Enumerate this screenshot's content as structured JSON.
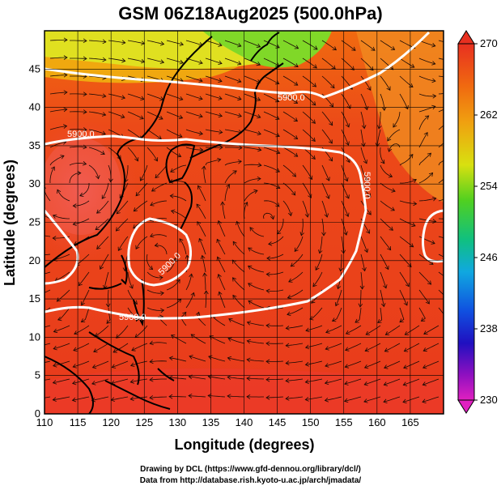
{
  "title": "GSM 06Z18Aug2025 (500.0hPa)",
  "chart_data": {
    "type": "heatmap",
    "x_axis_label": "Longitude (degrees)",
    "y_axis_label": "Latitude  (degrees)",
    "xlim": [
      110,
      170
    ],
    "ylim": [
      0,
      50
    ],
    "x_ticks": [
      "110",
      "115",
      "120",
      "125",
      "130",
      "135",
      "140",
      "145",
      "150",
      "155",
      "160",
      "165"
    ],
    "y_ticks": [
      "0",
      "5",
      "10",
      "15",
      "20",
      "25",
      "30",
      "35",
      "40",
      "45"
    ],
    "colorbar": {
      "range": [
        230,
        270
      ],
      "ticks": [
        "270",
        "262",
        "254",
        "246",
        "238",
        "230"
      ]
    },
    "contour_labels": [
      "5900.0",
      "5900.0",
      "5900.0",
      "5900.0",
      "5900.0"
    ],
    "grid": true
  },
  "credits": {
    "line1": "Drawing by DCL (https://www.gfd-dennou.org/library/dcl/)",
    "line2": "Data from http://database.rish.kyoto-u.ac.jp/arch/jmadata/"
  },
  "colors": {
    "warm": "#e8401c",
    "hot": "#f06060",
    "orange": "#f08020",
    "yellow": "#e8e020",
    "green": "#50d020"
  }
}
